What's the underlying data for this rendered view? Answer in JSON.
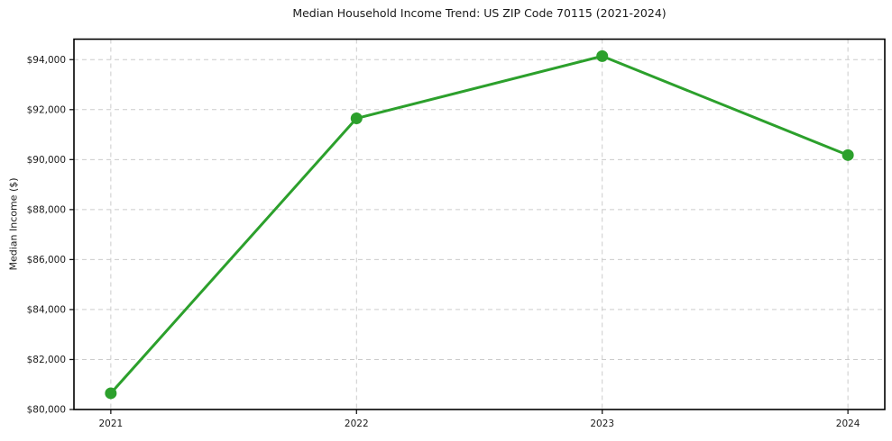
{
  "chart_data": {
    "type": "line",
    "title": "Median Household Income Trend: US ZIP Code 70115 (2021-2024)",
    "xlabel": "",
    "ylabel": "Median Income ($)",
    "x": [
      2021,
      2022,
      2023,
      2024
    ],
    "x_tick_labels": [
      "2021",
      "2022",
      "2023",
      "2024"
    ],
    "values": [
      80650,
      91650,
      94140,
      90180
    ],
    "yticks": [
      80000,
      82000,
      84000,
      86000,
      88000,
      90000,
      92000,
      94000
    ],
    "y_tick_labels": [
      "$80,000",
      "$82,000",
      "$84,000",
      "$86,000",
      "$88,000",
      "$90,000",
      "$92,000",
      "$94,000"
    ],
    "xlim": [
      2020.85,
      2024.15
    ],
    "ylim": [
      80000,
      94820
    ],
    "grid": true,
    "grid_line_style": "dashed",
    "legend_position": "none",
    "marker": "circle",
    "colors": {
      "line": "#2ca02c",
      "marker": "#2ca02c",
      "grid": "#cccccc",
      "spine": "#000000",
      "tick": "#1a1a1a",
      "text": "#1a1a1a",
      "background": "#ffffff"
    }
  }
}
